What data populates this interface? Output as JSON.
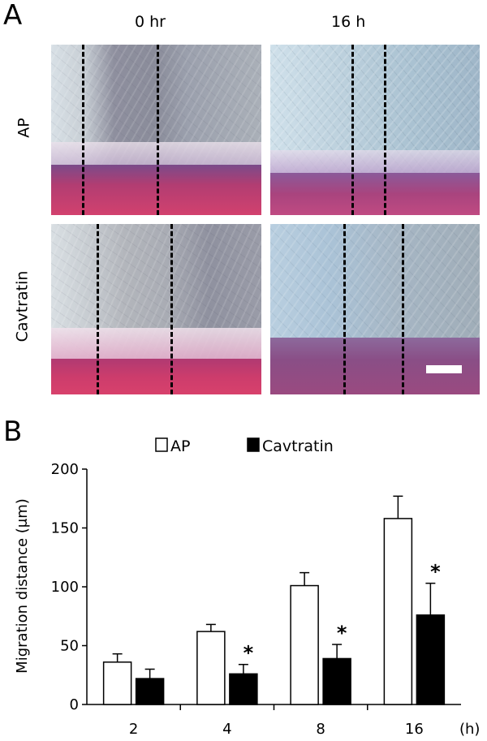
{
  "panel_a": {
    "letter": "A",
    "columns": [
      "0 hr",
      "16 h"
    ],
    "rows": [
      "AP",
      "Cavtratin"
    ]
  },
  "panel_b": {
    "letter": "B"
  },
  "chart_data": {
    "type": "bar",
    "categories": [
      "2",
      "4",
      "8",
      "16"
    ],
    "series": [
      {
        "name": "AP",
        "values": [
          36,
          62,
          101,
          158
        ],
        "errors": [
          7,
          6,
          11,
          19
        ],
        "fill": "#ffffff"
      },
      {
        "name": "Cavtratin",
        "values": [
          22,
          26,
          39,
          76
        ],
        "errors": [
          8,
          8,
          12,
          27
        ],
        "fill": "#000000"
      }
    ],
    "significance": [
      "",
      "*",
      "*",
      "*"
    ],
    "ylabel": "Migration distance (μm)",
    "xunit": "(h)",
    "ylim": [
      0,
      200
    ],
    "yticks": [
      0,
      50,
      100,
      150,
      200
    ],
    "legend_position": "top",
    "grid": false
  },
  "colors": {
    "accent_pink": "#c8346a",
    "cell_blue": "#a9bfd0"
  }
}
